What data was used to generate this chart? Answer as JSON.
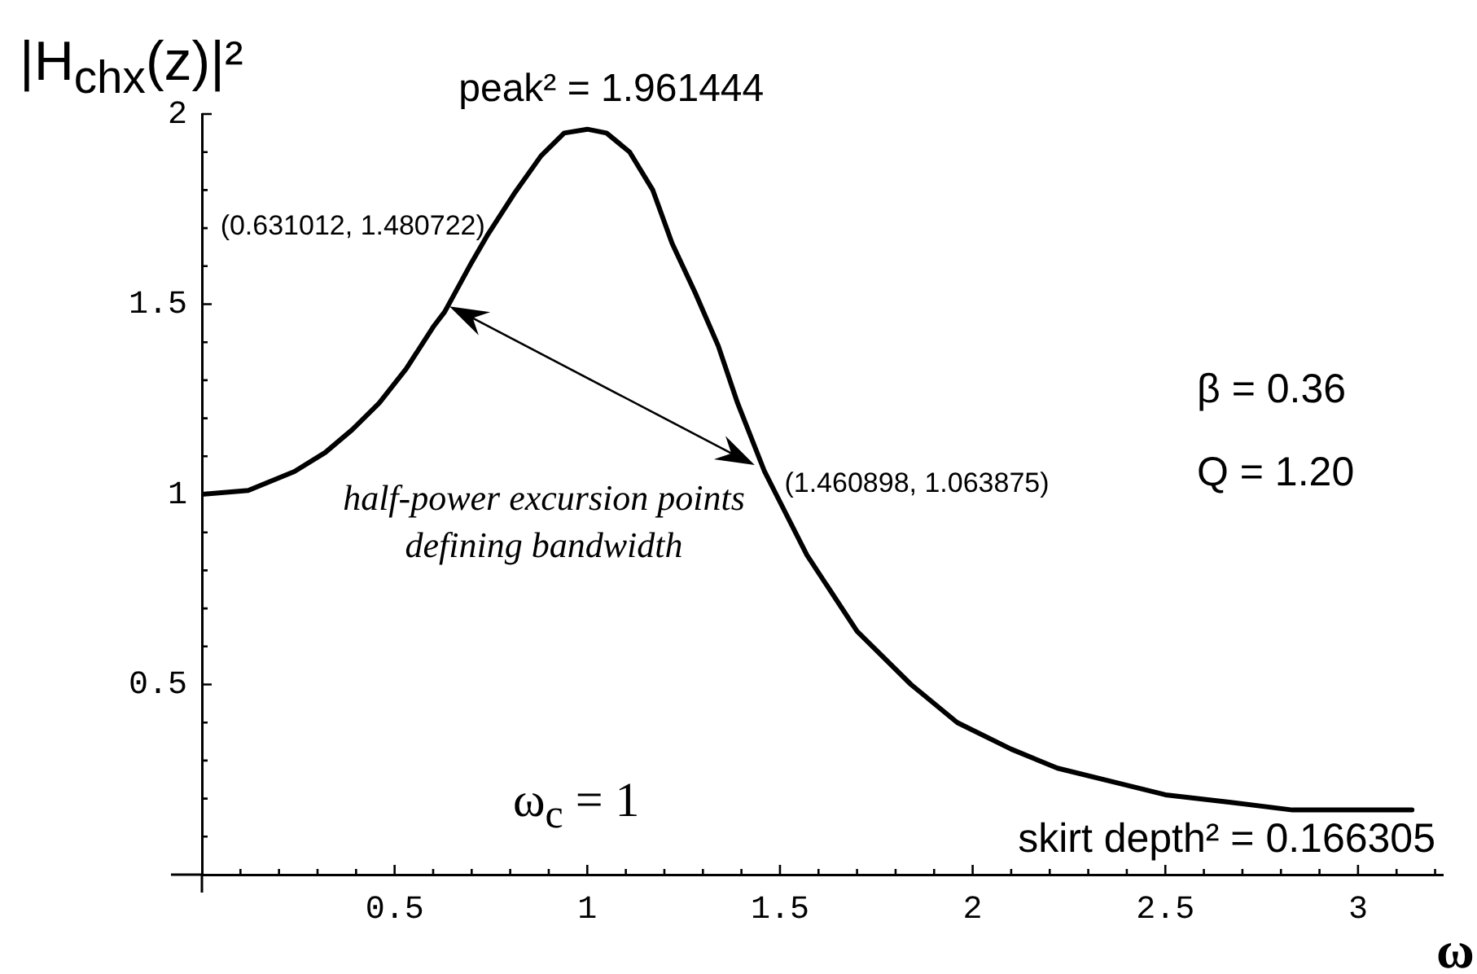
{
  "chart_data": {
    "type": "line",
    "ylabel": "|H$_{chx}$(z)|²",
    "xlabel": "ω",
    "x": [
      0,
      0.12,
      0.24,
      0.32,
      0.39,
      0.46,
      0.53,
      0.6,
      0.63,
      0.7,
      0.74,
      0.81,
      0.88,
      0.94,
      1.0,
      1.05,
      1.11,
      1.17,
      1.22,
      1.28,
      1.34,
      1.39,
      1.46,
      1.49,
      1.57,
      1.7,
      1.84,
      1.96,
      2.1,
      2.22,
      2.38,
      2.5,
      2.67,
      2.83,
      3.14
    ],
    "series": [
      {
        "color": "#000000",
        "values": [
          1.0,
          1.01,
          1.06,
          1.11,
          1.17,
          1.24,
          1.33,
          1.44,
          1.48,
          1.61,
          1.68,
          1.79,
          1.89,
          1.95,
          1.96,
          1.95,
          1.9,
          1.8,
          1.66,
          1.53,
          1.39,
          1.24,
          1.06,
          1.0,
          0.84,
          0.64,
          0.5,
          0.4,
          0.33,
          0.28,
          0.24,
          0.21,
          0.19,
          0.17,
          0.17
        ]
      }
    ],
    "xlim": [
      0,
      3.22
    ],
    "ylim": [
      0,
      2
    ],
    "xticks": [
      {
        "value": 0.1,
        "label": null
      },
      {
        "value": 0.2,
        "label": null
      },
      {
        "value": 0.3,
        "label": null
      },
      {
        "value": 0.4,
        "label": null
      },
      0.5,
      {
        "value": 0.6,
        "label": null
      },
      {
        "value": 0.7,
        "label": null
      },
      {
        "value": 0.8,
        "label": null
      },
      {
        "value": 0.9,
        "label": null
      },
      1,
      {
        "value": 1.1,
        "label": null
      },
      {
        "value": 1.2,
        "label": null
      },
      {
        "value": 1.3,
        "label": null
      },
      {
        "value": 1.4,
        "label": null
      },
      1.5,
      {
        "value": 1.6,
        "label": null
      },
      {
        "value": 1.7,
        "label": null
      },
      {
        "value": 1.8,
        "label": null
      },
      {
        "value": 1.9,
        "label": null
      },
      2,
      {
        "value": 2.1,
        "label": null
      },
      {
        "value": 2.2,
        "label": null
      },
      {
        "value": 2.3,
        "label": null
      },
      {
        "value": 2.4,
        "label": null
      },
      2.5,
      {
        "value": 2.6,
        "label": null
      },
      {
        "value": 2.7,
        "label": null
      },
      {
        "value": 2.8,
        "label": null
      },
      {
        "value": 2.9,
        "label": null
      },
      3,
      {
        "value": 3.1,
        "label": null
      },
      {
        "value": 3.2,
        "label": null
      }
    ],
    "yticks": [
      {
        "value": 0.1,
        "label": null
      },
      {
        "value": 0.2,
        "label": null
      },
      {
        "value": 0.3,
        "label": null
      },
      {
        "value": 0.4,
        "label": null
      },
      0.5,
      {
        "value": 0.6,
        "label": null
      },
      {
        "value": 0.7,
        "label": null
      },
      {
        "value": 0.8,
        "label": null
      },
      {
        "value": 0.9,
        "label": null
      },
      1,
      {
        "value": 1.1,
        "label": null
      },
      {
        "value": 1.2,
        "label": null
      },
      {
        "value": 1.3,
        "label": null
      },
      {
        "value": 1.4,
        "label": null
      },
      1.5,
      {
        "value": 1.6,
        "label": null
      },
      {
        "value": 1.7,
        "label": null
      },
      {
        "value": 1.8,
        "label": null
      },
      {
        "value": 1.9,
        "label": null
      },
      2
    ],
    "line_style": "solid",
    "annotations": [
      {
        "text": "peak² = 1.961444",
        "x": 1.0,
        "y": 1.961444
      },
      {
        "text": "(0.631012, 1.480722)",
        "x": 0.631012,
        "y": 1.480722
      },
      {
        "text": "(1.460898, 1.063875)",
        "x": 1.460898,
        "y": 1.063875
      },
      "β = 0.36",
      "Q = 1.20",
      "half-power excursion points defining bandwidth",
      "ω$_{c}$ = 1",
      {
        "text": "skirt depth² = 0.166305",
        "x": 3.14,
        "y": 0.166305
      }
    ]
  }
}
